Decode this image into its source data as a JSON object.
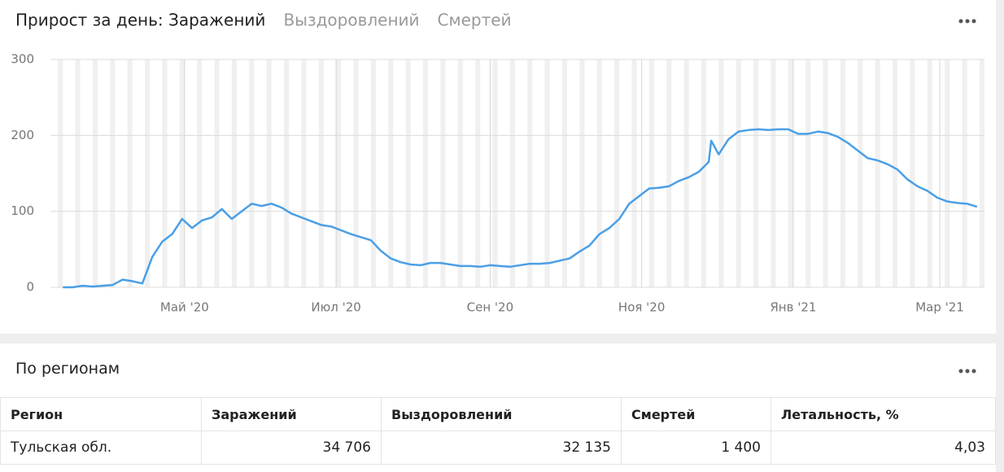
{
  "chart_data": {
    "type": "line",
    "tabs": [
      "Прирост за день: Заражений",
      "Выздоровлений",
      "Смертей"
    ],
    "x": [
      12,
      16,
      20,
      24,
      28,
      32,
      36,
      40,
      44,
      48,
      52,
      56,
      60,
      64,
      68,
      72,
      76,
      80,
      84,
      88,
      92,
      96,
      100,
      104,
      108,
      112,
      116,
      120,
      124,
      128,
      132,
      136,
      140,
      144,
      148,
      152,
      156,
      160,
      164,
      168,
      172,
      176,
      180,
      184,
      188,
      192,
      196,
      200,
      204,
      208,
      212,
      216,
      220,
      224,
      228,
      232,
      236,
      240,
      244,
      248,
      252,
      256,
      260,
      264,
      268,
      272,
      273,
      276,
      280,
      284,
      288,
      292,
      296,
      300,
      304,
      308,
      312,
      316,
      320,
      324,
      328,
      332,
      336,
      340,
      344,
      348,
      352,
      356,
      360,
      364,
      368,
      372,
      376,
      380
    ],
    "values": [
      0,
      0,
      2,
      1,
      2,
      3,
      10,
      8,
      5,
      40,
      60,
      70,
      90,
      78,
      88,
      92,
      103,
      90,
      100,
      110,
      107,
      110,
      105,
      97,
      92,
      87,
      82,
      80,
      75,
      70,
      66,
      62,
      48,
      38,
      33,
      30,
      29,
      32,
      32,
      30,
      28,
      28,
      27,
      29,
      28,
      27,
      29,
      31,
      31,
      32,
      35,
      38,
      47,
      55,
      70,
      78,
      90,
      110,
      120,
      130,
      131,
      133,
      140,
      145,
      152,
      165,
      193,
      175,
      195,
      205,
      207,
      208,
      207,
      208,
      208,
      202,
      202,
      205,
      203,
      198,
      190,
      180,
      170,
      167,
      162,
      155,
      142,
      133,
      127,
      118,
      113,
      111,
      110,
      106
    ],
    "color": "#4a9fe6",
    "xlim": [
      7,
      383
    ],
    "xticks": [
      {
        "value": 61,
        "label": "Май '20"
      },
      {
        "value": 122,
        "label": "Июл '20"
      },
      {
        "value": 184,
        "label": "Сен '20"
      },
      {
        "value": 245,
        "label": "Ноя '20"
      },
      {
        "value": 306,
        "label": "Янв '21"
      },
      {
        "value": 365,
        "label": "Мар '21"
      }
    ],
    "ylim": [
      0,
      300
    ],
    "yticks": [
      0,
      100,
      200,
      300
    ],
    "grid": true
  },
  "table": {
    "title": "По регионам",
    "header": [
      "Регион",
      "Заражений",
      "Выздоровлений",
      "Смертей",
      "Летальность, %"
    ],
    "rows": [
      [
        "Тульская обл.",
        "34 706",
        "32 135",
        "1 400",
        "4,03"
      ]
    ]
  }
}
